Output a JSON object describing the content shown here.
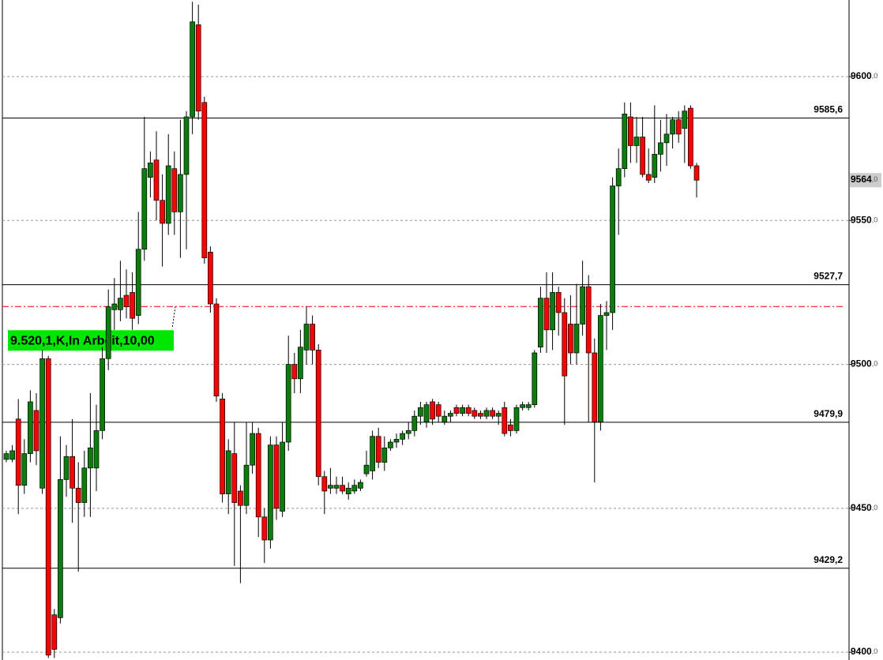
{
  "chart_data": {
    "type": "candlestick",
    "ylim": [
      9397.3,
      9626.6
    ],
    "yticks": [
      {
        "value": 9400,
        "label": "9400,0"
      },
      {
        "value": 9450,
        "label": "9450,0"
      },
      {
        "value": 9500,
        "label": "9500,0"
      },
      {
        "value": 9550,
        "label": "9550,0"
      },
      {
        "value": 9600,
        "label": "9600,0"
      }
    ],
    "grid": true,
    "up_color": "#0a7d0a",
    "down_color": "#ff0000",
    "levels": [
      {
        "value": 9585.6,
        "label": "9585,6"
      },
      {
        "value": 9527.7,
        "label": "9527,7"
      },
      {
        "value": 9479.9,
        "label": "9479,9"
      },
      {
        "value": 9429.2,
        "label": "9429,2"
      }
    ],
    "order": {
      "value": 9520.1,
      "label": "9.520,1,K,In Arbeit,10,00",
      "color": "#00e600"
    },
    "last_price": {
      "value": 9564,
      "label": "9564,0"
    },
    "ohlc": [
      [
        9467,
        9470,
        9466,
        9469
      ],
      [
        9467,
        9472,
        9466,
        9470
      ],
      [
        9481,
        9488,
        9448,
        9458
      ],
      [
        9458,
        9474,
        9455,
        9469
      ],
      [
        9469,
        9491,
        9466,
        9487
      ],
      [
        9484,
        9490,
        9465,
        9470
      ],
      [
        9457,
        9505,
        9455,
        9502
      ],
      [
        9502,
        9503,
        9398,
        9399
      ],
      [
        9413,
        9415,
        9398,
        9401
      ],
      [
        9412,
        9475,
        9410,
        9460
      ],
      [
        9460,
        9472,
        9454,
        9468
      ],
      [
        9468,
        9481,
        9445,
        9457
      ],
      [
        9457,
        9466,
        9428,
        9452
      ],
      [
        9452,
        9470,
        9447,
        9464
      ],
      [
        9464,
        9490,
        9447,
        9471
      ],
      [
        9464,
        9486,
        9456,
        9477
      ],
      [
        9477,
        9506,
        9474,
        9502
      ],
      [
        9502,
        9526,
        9498,
        9520
      ],
      [
        9519,
        9530,
        9512,
        9521
      ],
      [
        9519,
        9536,
        9515,
        9523
      ],
      [
        9524,
        9533,
        9516,
        9520
      ],
      [
        9525,
        9532,
        9512,
        9516
      ],
      [
        9517,
        9553,
        9514,
        9540
      ],
      [
        9540,
        9586,
        9536,
        9568
      ],
      [
        9565,
        9574,
        9558,
        9570
      ],
      [
        9571,
        9581,
        9550,
        9557
      ],
      [
        9557,
        9566,
        9534,
        9549
      ],
      [
        9549,
        9580,
        9545,
        9569
      ],
      [
        9568,
        9574,
        9545,
        9553
      ],
      [
        9553,
        9585,
        9537,
        9566
      ],
      [
        9566,
        9588,
        9540,
        9586
      ],
      [
        9586,
        9626,
        9580,
        9619
      ],
      [
        9618,
        9625,
        9585,
        9588
      ],
      [
        9591,
        9593,
        9535,
        9537
      ],
      [
        9539,
        9541,
        9518,
        9521
      ],
      [
        9521,
        9523,
        9487,
        9489
      ],
      [
        9488,
        9490,
        9452,
        9455
      ],
      [
        9455,
        9474,
        9448,
        9470
      ],
      [
        9469,
        9480,
        9430,
        9452
      ],
      [
        9456,
        9458,
        9424,
        9451
      ],
      [
        9451,
        9480,
        9448,
        9465
      ],
      [
        9465,
        9480,
        9462,
        9476
      ],
      [
        9476,
        9478,
        9440,
        9447
      ],
      [
        9447,
        9450,
        9431,
        9439
      ],
      [
        9439,
        9475,
        9436,
        9472
      ],
      [
        9472,
        9475,
        9446,
        9450
      ],
      [
        9449,
        9480,
        9447,
        9473
      ],
      [
        9473,
        9510,
        9470,
        9500
      ],
      [
        9500,
        9504,
        9490,
        9495
      ],
      [
        9495,
        9512,
        9490,
        9506
      ],
      [
        9505,
        9520,
        9500,
        9514
      ],
      [
        9514,
        9517,
        9500,
        9505
      ],
      [
        9505,
        9507,
        9458,
        9461
      ],
      [
        9461,
        9463,
        9448,
        9456
      ],
      [
        9457,
        9464,
        9455,
        9458
      ],
      [
        9457,
        9461,
        9455,
        9458
      ],
      [
        9458,
        9461,
        9455,
        9456
      ],
      [
        9455,
        9459,
        9453,
        9457
      ],
      [
        9456,
        9460,
        9455,
        9458
      ],
      [
        9457,
        9460,
        9456,
        9459
      ],
      [
        9462,
        9470,
        9461,
        9465
      ],
      [
        9463,
        9477,
        9460,
        9475
      ],
      [
        9475,
        9478,
        9464,
        9466
      ],
      [
        9466,
        9475,
        9463,
        9471
      ],
      [
        9471,
        9474,
        9470,
        9473
      ],
      [
        9473,
        9476,
        9471,
        9474
      ],
      [
        9474,
        9477,
        9472,
        9476
      ],
      [
        9476,
        9480,
        9474,
        9477
      ],
      [
        9477,
        9484,
        9475,
        9482
      ],
      [
        9482,
        9487,
        9479,
        9485
      ],
      [
        9480,
        9487,
        9478,
        9486
      ],
      [
        9487,
        9488,
        9479,
        9481
      ],
      [
        9486,
        9487,
        9480,
        9482
      ],
      [
        9480,
        9484,
        9479,
        9482
      ],
      [
        9482,
        9484,
        9480,
        9483
      ],
      [
        9485,
        9486,
        9482,
        9483
      ],
      [
        9483,
        9486,
        9482,
        9485
      ],
      [
        9485,
        9486,
        9482,
        9483
      ],
      [
        9484,
        9485,
        9481,
        9482
      ],
      [
        9483,
        9484,
        9481,
        9482
      ],
      [
        9482,
        9485,
        9481,
        9484
      ],
      [
        9484,
        9485,
        9481,
        9482
      ],
      [
        9482,
        9484,
        9479,
        9483
      ],
      [
        9485,
        9487,
        9475,
        9476
      ],
      [
        9479,
        9481,
        9475,
        9477
      ],
      [
        9477,
        9486,
        9476,
        9485
      ],
      [
        9485,
        9487,
        9484,
        9486
      ],
      [
        9485,
        9487,
        9484,
        9486
      ],
      [
        9486,
        9505,
        9485,
        9504
      ],
      [
        9506,
        9527,
        9504,
        9523
      ],
      [
        9523,
        9532,
        9504,
        9512
      ],
      [
        9512,
        9532,
        9505,
        9525
      ],
      [
        9525,
        9527,
        9510,
        9518
      ],
      [
        9518,
        9523,
        9479,
        9496
      ],
      [
        9514,
        9524,
        9500,
        9504
      ],
      [
        9504,
        9528,
        9500,
        9514
      ],
      [
        9514,
        9536,
        9510,
        9527
      ],
      [
        9527,
        9531,
        9480,
        9504
      ],
      [
        9504,
        9509,
        9459,
        9480
      ],
      [
        9480,
        9521,
        9477,
        9517
      ],
      [
        9517,
        9522,
        9505,
        9518
      ],
      [
        9518,
        9565,
        9512,
        9562
      ],
      [
        9562,
        9575,
        9545,
        9568
      ],
      [
        9568,
        9591,
        9565,
        9587
      ],
      [
        9586,
        9591,
        9570,
        9576
      ],
      [
        9576,
        9586,
        9570,
        9579
      ],
      [
        9579,
        9586,
        9565,
        9566
      ],
      [
        9566,
        9575,
        9563,
        9564
      ],
      [
        9565,
        9590,
        9563,
        9573
      ],
      [
        9573,
        9585,
        9567,
        9577
      ],
      [
        9577,
        9587,
        9569,
        9580
      ],
      [
        9580,
        9586,
        9575,
        9585
      ],
      [
        9585,
        9588,
        9577,
        9580
      ],
      [
        9582,
        9590,
        9570,
        9588
      ],
      [
        9589,
        9590,
        9568,
        9569
      ],
      [
        9569,
        9570,
        9558,
        9564
      ]
    ]
  }
}
